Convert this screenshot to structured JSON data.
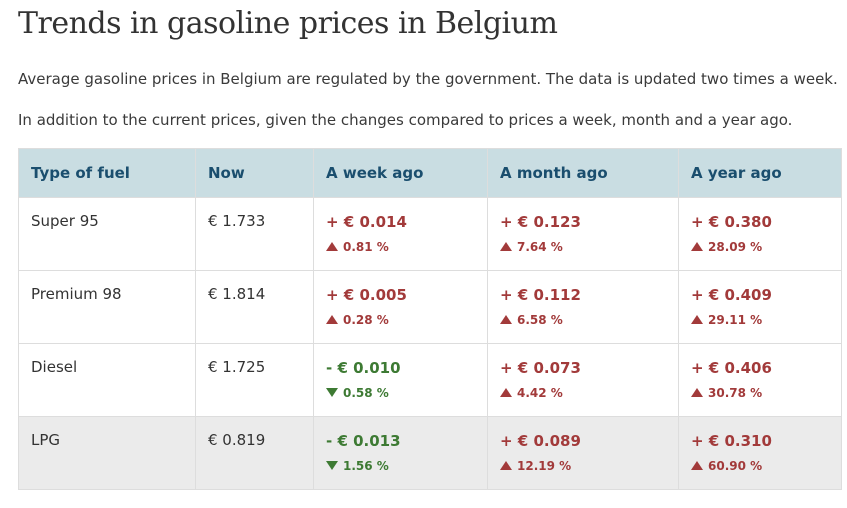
{
  "title": "Trends in gasoline prices in Belgium",
  "intro1": "Average gasoline prices in Belgium are regulated by the government. The data is updated two times a week.",
  "intro2": "In addition to the current prices, given the changes compared to prices a week, month and a year ago.",
  "table": {
    "headers": [
      "Type of fuel",
      "Now",
      "A week ago",
      "A month ago",
      "A year ago"
    ],
    "rows": [
      {
        "fuel": "Super 95",
        "now": "€ 1.733",
        "week": {
          "value": "+ € 0.014",
          "pct": "0.81 %",
          "dir": "up"
        },
        "month": {
          "value": "+ € 0.123",
          "pct": "7.64 %",
          "dir": "up"
        },
        "year": {
          "value": "+ € 0.380",
          "pct": "28.09 %",
          "dir": "up"
        }
      },
      {
        "fuel": "Premium 98",
        "now": "€ 1.814",
        "week": {
          "value": "+ € 0.005",
          "pct": "0.28 %",
          "dir": "up"
        },
        "month": {
          "value": "+ € 0.112",
          "pct": "6.58 %",
          "dir": "up"
        },
        "year": {
          "value": "+ € 0.409",
          "pct": "29.11 %",
          "dir": "up"
        }
      },
      {
        "fuel": "Diesel",
        "now": "€ 1.725",
        "week": {
          "value": "- € 0.010",
          "pct": "0.58 %",
          "dir": "down"
        },
        "month": {
          "value": "+ € 0.073",
          "pct": "4.42 %",
          "dir": "up"
        },
        "year": {
          "value": "+ € 0.406",
          "pct": "30.78 %",
          "dir": "up"
        }
      },
      {
        "fuel": "LPG",
        "now": "€ 0.819",
        "week": {
          "value": "- € 0.013",
          "pct": "1.56 %",
          "dir": "down"
        },
        "month": {
          "value": "+ € 0.089",
          "pct": "12.19 %",
          "dir": "up"
        },
        "year": {
          "value": "+ € 0.310",
          "pct": "60.90 %",
          "dir": "up"
        }
      }
    ]
  },
  "colors": {
    "header_bg": "#c9dde2",
    "header_text": "#1a4e6e",
    "increase": "#a23a3a",
    "decrease": "#3d7a33",
    "highlight_row": "#ebebeb"
  },
  "icons": {
    "increase": "triangle-up-icon",
    "decrease": "triangle-down-icon"
  }
}
